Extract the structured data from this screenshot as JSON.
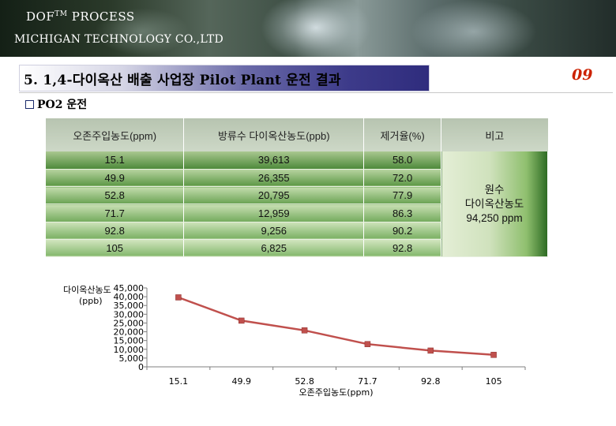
{
  "header": {
    "brand_title": "DOF",
    "brand_tm": "TM",
    "brand_title_rest": " PROCESS",
    "company": "MICHIGAN TECHNOLOGY CO.,LTD"
  },
  "section": {
    "title": "5. 1,4-다이옥산 배출 사업장 Pilot Plant 운전 결과",
    "page_number": "09",
    "subheading": "PO2 운전"
  },
  "table": {
    "headers": [
      "오존주입농도(ppm)",
      "방류수 다이옥산농도(ppb)",
      "제거율(%)",
      "비고"
    ],
    "rows": [
      [
        "15.1",
        "39,613",
        "58.0"
      ],
      [
        "49.9",
        "26,355",
        "72.0"
      ],
      [
        "52.8",
        "20,795",
        "77.9"
      ],
      [
        "71.7",
        "12,959",
        "86.3"
      ],
      [
        "92.8",
        "9,256",
        "90.2"
      ],
      [
        "105",
        "6,825",
        "92.8"
      ]
    ],
    "note": [
      "원수",
      "다이옥산농도",
      "94,250 ppm"
    ]
  },
  "colors": {
    "series_line": "#c0504d",
    "marker_fill": "#c0504d",
    "page_number": "#cc2200",
    "section_bar_dark": "#2f2c7d"
  },
  "chart_data": {
    "type": "line",
    "categories": [
      "15.1",
      "49.9",
      "52.8",
      "71.7",
      "92.8",
      "105"
    ],
    "series": [
      {
        "values": [
          39613,
          26355,
          20795,
          12959,
          9256,
          6825
        ]
      }
    ],
    "ylabel_line1": "다이옥산농도",
    "ylabel_line2": "(ppb)",
    "xlabel": "오존주입농도(ppm)",
    "ylim": [
      0,
      45000
    ],
    "yticks": [
      0,
      5000,
      10000,
      15000,
      20000,
      25000,
      30000,
      35000,
      40000,
      45000
    ],
    "ytick_labels": [
      "0",
      "5,000",
      "10,000",
      "15,000",
      "20,000",
      "25,000",
      "30,000",
      "35,000",
      "40,000",
      "45,000"
    ],
    "grid": false,
    "legend": "none"
  }
}
